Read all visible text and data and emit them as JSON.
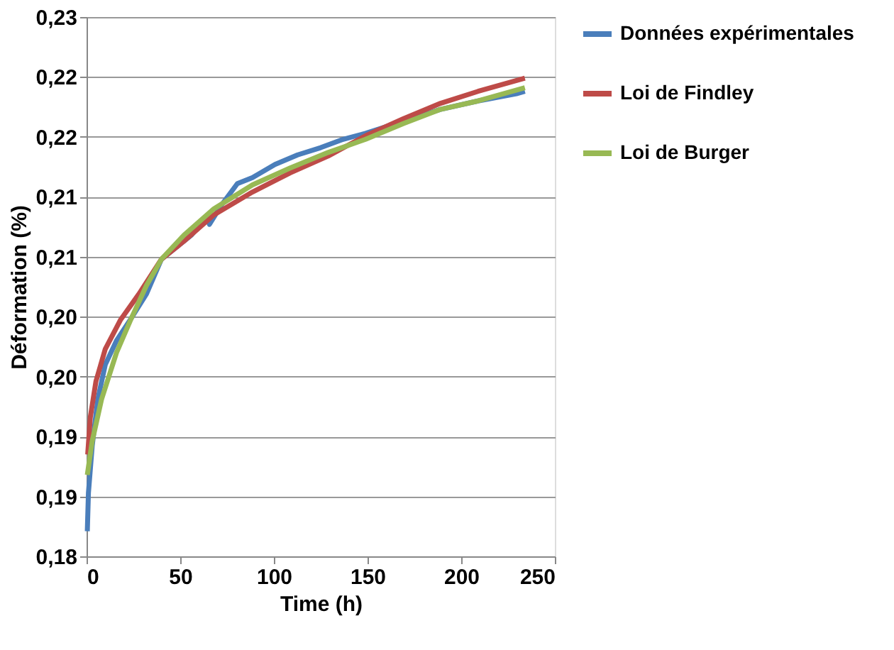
{
  "chart_data": {
    "type": "line",
    "xlabel": "Time (h)",
    "ylabel": "Déformation (%)",
    "xlim": [
      0,
      250
    ],
    "xticks": [
      0,
      50,
      100,
      150,
      200,
      250
    ],
    "ylim": [
      0.18,
      0.225
    ],
    "yticks": [
      {
        "value": 0.18,
        "label": "0,18"
      },
      {
        "value": 0.185,
        "label": "0,19"
      },
      {
        "value": 0.19,
        "label": "0,19"
      },
      {
        "value": 0.195,
        "label": "0,20"
      },
      {
        "value": 0.2,
        "label": "0,20"
      },
      {
        "value": 0.205,
        "label": "0,21"
      },
      {
        "value": 0.21,
        "label": "0,21"
      },
      {
        "value": 0.215,
        "label": "0,22"
      },
      {
        "value": 0.22,
        "label": "0,22"
      },
      {
        "value": 0.225,
        "label": "0,23"
      }
    ],
    "grid": "y",
    "legend": "right",
    "marker": "none",
    "line_style": "solid",
    "series": [
      {
        "name": "Données expérimentales",
        "color": "#4a7ebb",
        "x": [
          0.4,
          1,
          3,
          6,
          10,
          16,
          24,
          32,
          40,
          48,
          56,
          64,
          65.6,
          72,
          80.5,
          88.6,
          100.6,
          112.7,
          125,
          137,
          149,
          169,
          189,
          209,
          229.5,
          234
        ],
        "values": [
          0.1821,
          0.1853,
          0.1892,
          0.1931,
          0.196,
          0.198,
          0.1999,
          0.2019,
          0.2048,
          0.2058,
          0.2068,
          0.2083,
          0.2077,
          0.2093,
          0.2111,
          0.2116,
          0.2127,
          0.2135,
          0.2141,
          0.2148,
          0.2153,
          0.2163,
          0.2173,
          0.218,
          0.2186,
          0.2188
        ]
      },
      {
        "name": "Loi de Findley",
        "color": "#be4b48",
        "x": [
          0.6,
          2,
          5,
          10,
          18,
          28,
          40,
          52,
          68,
          88.6,
          108.7,
          129,
          149,
          169,
          189,
          209,
          234
        ],
        "values": [
          0.1885,
          0.1916,
          0.1946,
          0.1973,
          0.1997,
          0.2019,
          0.2048,
          0.2063,
          0.2085,
          0.2104,
          0.212,
          0.2134,
          0.2151,
          0.2165,
          0.2178,
          0.2188,
          0.2199
        ]
      },
      {
        "name": "Loi de Burger",
        "color": "#98b954",
        "x": [
          0.4,
          3,
          8,
          16,
          24,
          32,
          40,
          52,
          68,
          88.6,
          108.7,
          129,
          149,
          169,
          189,
          209,
          234
        ],
        "values": [
          0.1868,
          0.1896,
          0.1931,
          0.197,
          0.1999,
          0.2026,
          0.2048,
          0.2068,
          0.209,
          0.211,
          0.2124,
          0.2137,
          0.2148,
          0.2161,
          0.2173,
          0.218,
          0.2191
        ]
      }
    ]
  }
}
